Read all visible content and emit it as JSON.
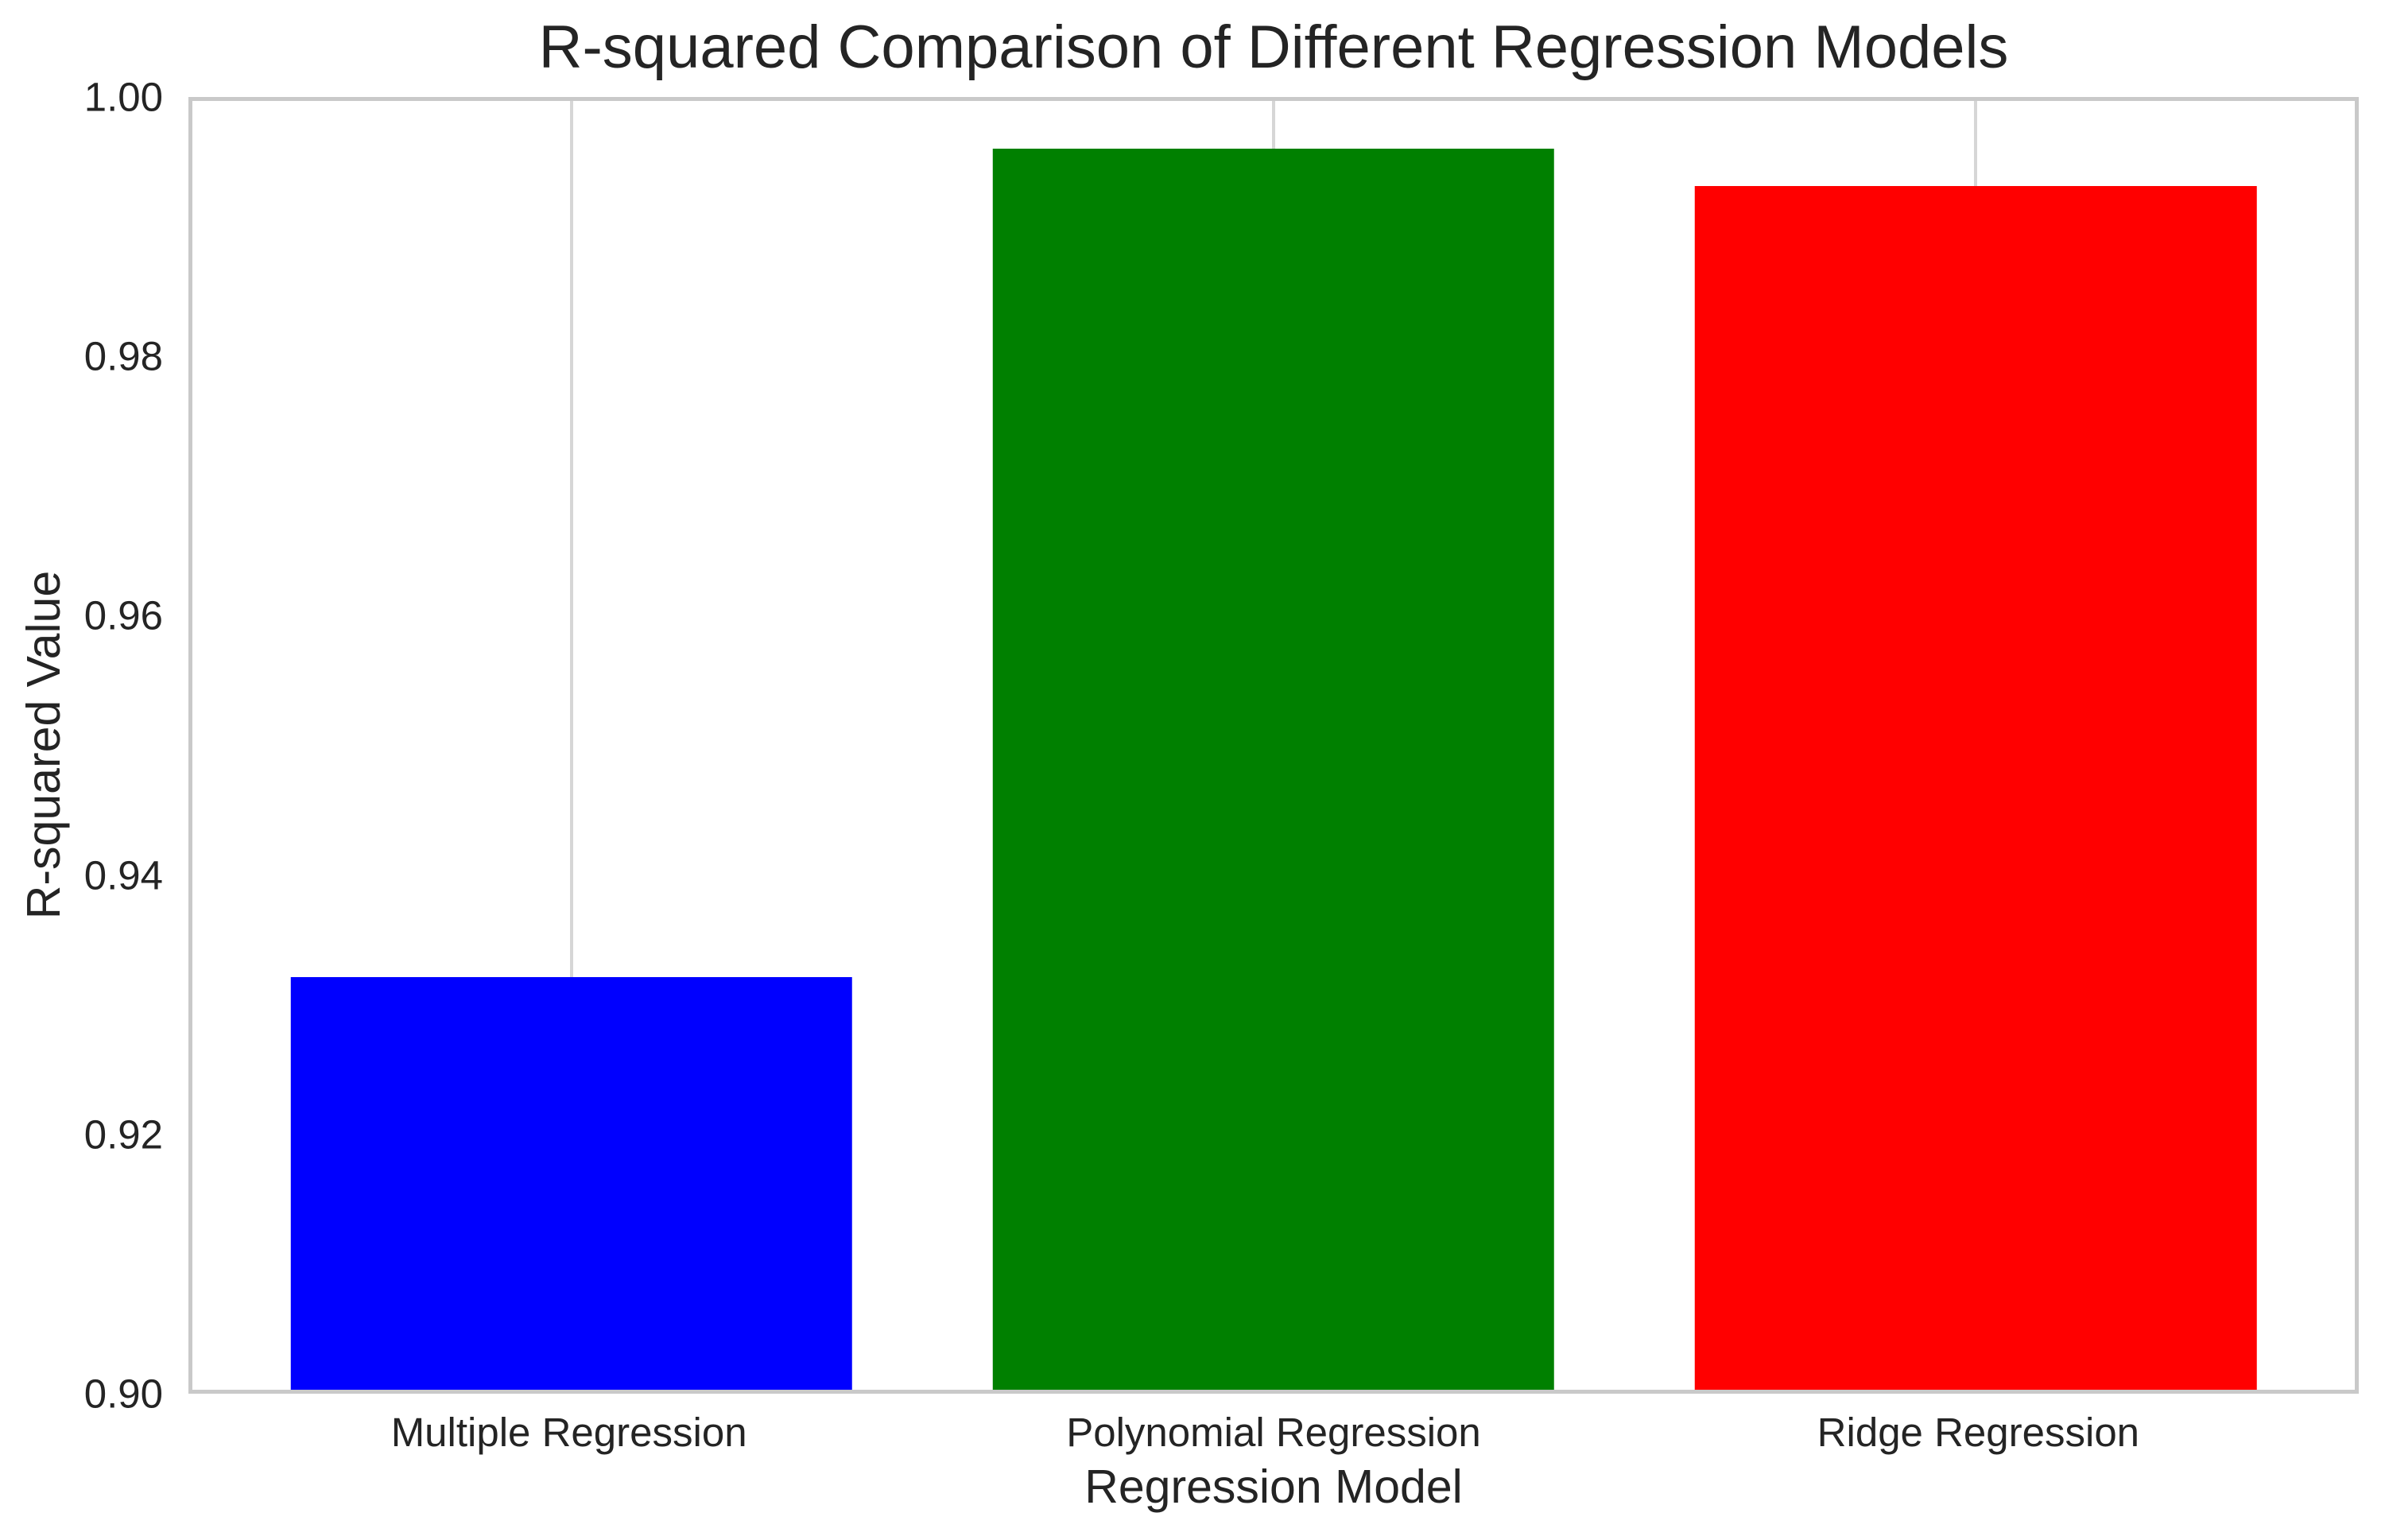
{
  "chart_data": {
    "type": "bar",
    "title": "R-squared Comparison of Different Regression Models",
    "xlabel": "Regression Model",
    "ylabel": "R-squared Value",
    "categories": [
      "Multiple Regression",
      "Polynomial Regression",
      "Ridge Regression"
    ],
    "values": [
      0.932,
      0.9963,
      0.9934
    ],
    "bar_colors": [
      "#0000ff",
      "#008000",
      "#ff0000"
    ],
    "ylim": [
      0.9,
      1.0
    ],
    "yticks": [
      0.9,
      0.92,
      0.94,
      0.96,
      0.98,
      1.0
    ],
    "ytick_labels": [
      "0.90",
      "0.92",
      "0.94",
      "0.96",
      "0.98",
      "1.00"
    ],
    "bar_relative_width": 0.8,
    "grid": "vertical-only",
    "legend": "none"
  },
  "style": {
    "background_color": "#ffffff",
    "spine_color": "#c9c9c9",
    "grid_color": "#d6d6d6",
    "text_color": "#242424"
  }
}
